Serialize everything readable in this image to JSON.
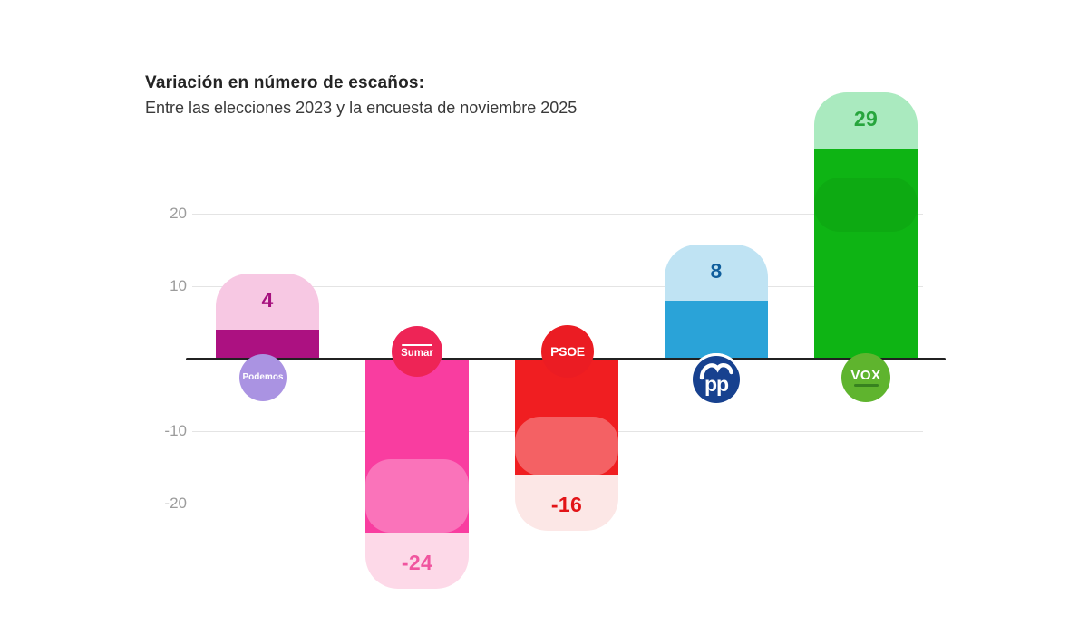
{
  "header": {
    "title": "Variación en número de escaños:",
    "subtitle": "Entre las elecciones 2023 y la encuesta de noviembre 2025"
  },
  "chart_data": {
    "type": "bar",
    "title": "Variación en número de escaños:",
    "subtitle": "Entre las elecciones 2023 y la encuesta de noviembre 2025",
    "categories": [
      "Podemos",
      "Sumar",
      "PSOE",
      "PP",
      "VOX"
    ],
    "values": [
      4,
      -24,
      -16,
      8,
      29
    ],
    "ylabel": "",
    "xlabel": "",
    "ylim": [
      -30,
      33
    ],
    "grid": true,
    "baseline": 0,
    "yticks": [
      {
        "label": "20",
        "value": 20
      },
      {
        "label": "10",
        "value": 10
      },
      {
        "label": "-10",
        "value": -10
      },
      {
        "label": "-20",
        "value": -20
      }
    ],
    "bars": [
      {
        "party": "Podemos",
        "value": 4,
        "label": "4",
        "bar_color": "#AC1181",
        "tint_color": "#F7C8E3",
        "label_color": "#A6117E",
        "badge_text": "Podemos",
        "badge_color": "#AA93E2",
        "badge_text_color": "#FFFFFF"
      },
      {
        "party": "Sumar",
        "value": -24,
        "label": "-24",
        "bar_color": "#F93DA0",
        "tint_color": "#FDD9E8",
        "label_color": "#F0559F",
        "badge_text": "Sumar",
        "badge_color": "#EE2456",
        "badge_text_color": "#FFFFFF"
      },
      {
        "party": "PSOE",
        "value": -16,
        "label": "-16",
        "bar_color": "#F01E21",
        "tint_color": "#FCE7E6",
        "label_color": "#E21418",
        "badge_text": "PSOE",
        "badge_color": "#EB1C23",
        "badge_text_color": "#FFFFFF"
      },
      {
        "party": "PP",
        "value": 8,
        "label": "8",
        "bar_color": "#2AA3D8",
        "tint_color": "#BFE3F3",
        "label_color": "#0F5E9C",
        "badge_text": "pp",
        "badge_color": "#17418F",
        "badge_text_color": "#FFFFFF"
      },
      {
        "party": "VOX",
        "value": 29,
        "label": "29",
        "bar_color": "#0EB414",
        "tint_color": "#AAEABF",
        "label_color": "#27A53D",
        "badge_text": "VOX",
        "badge_color": "#5FB42E",
        "badge_text_color": "#FFFFFF"
      }
    ],
    "axis_colors": {
      "zero_line": "#212121",
      "grid": "#E4E4E4",
      "tick_text": "#9C9C9C"
    }
  }
}
